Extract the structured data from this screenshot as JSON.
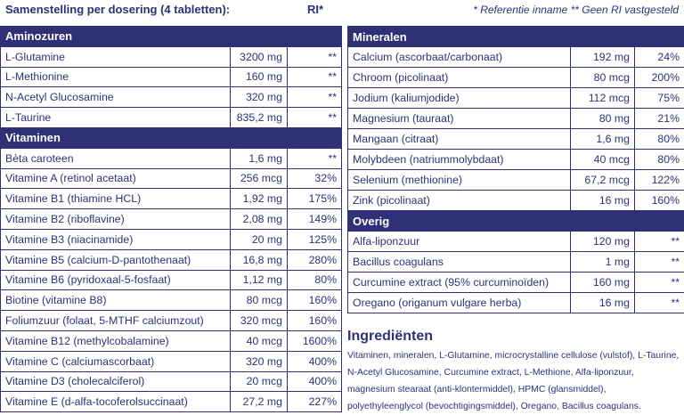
{
  "header": {
    "title": "Samenstelling per dosering (4 tabletten):",
    "ri": "RI*",
    "legend": "* Referentie inname ** Geen RI vastgesteld"
  },
  "left": {
    "sections": [
      {
        "title": "Aminozuren",
        "rows": [
          [
            "L-Glutamine",
            "3200 mg",
            "**"
          ],
          [
            "L-Methionine",
            "160 mg",
            "**"
          ],
          [
            "N-Acetyl Glucosamine",
            "320 mg",
            "**"
          ],
          [
            "L-Taurine",
            "835,2 mg",
            "**"
          ]
        ]
      },
      {
        "title": "Vitaminen",
        "rows": [
          [
            "Bèta caroteen",
            "1,6 mg",
            "**"
          ],
          [
            "Vitamine A (retinol acetaat)",
            "256 mcg",
            "32%"
          ],
          [
            "Vitamine B1 (thiamine HCL)",
            "1,92 mg",
            "175%"
          ],
          [
            "Vitamine B2 (riboflavine)",
            "2,08 mg",
            "149%"
          ],
          [
            "Vitamine B3 (niacinamide)",
            "20 mg",
            "125%"
          ],
          [
            "Vitamine B5 (calcium-D-pantothenaat)",
            "16,8 mg",
            "280%"
          ],
          [
            "Vitamine B6 (pyridoxaal-5-fosfaat)",
            "1,12 mg",
            "80%"
          ],
          [
            "Biotine (vitamine B8)",
            "80 mcg",
            "160%"
          ],
          [
            "Foliumzuur (folaat, 5-MTHF calciumzout)",
            "320 mcg",
            "160%"
          ],
          [
            "Vitamine B12 (methylcobalamine)",
            "40 mcg",
            "1600%"
          ],
          [
            "Vitamine C (calciumascorbaat)",
            "320 mg",
            "400%"
          ],
          [
            "Vitamine D3 (cholecalciferol)",
            "20 mcg",
            "400%"
          ],
          [
            "Vitamine E (d-alfa-tocoferolsuccinaat)",
            "27,2 mg",
            "227%"
          ]
        ]
      }
    ]
  },
  "right": {
    "sections": [
      {
        "title": "Mineralen",
        "rows": [
          [
            "Calcium (ascorbaat/carbonaat)",
            "192 mg",
            "24%"
          ],
          [
            "Chroom (picolinaat)",
            "80 mcg",
            "200%"
          ],
          [
            "Jodium (kaliumjodide)",
            "112 mcg",
            "75%"
          ],
          [
            "Magnesium (tauraat)",
            "80 mg",
            "21%"
          ],
          [
            "Mangaan (citraat)",
            "1,6 mg",
            "80%"
          ],
          [
            "Molybdeen (natriummolybdaat)",
            "40 mcg",
            "80%"
          ],
          [
            "Selenium (methionine)",
            "67,2 mcg",
            "122%"
          ],
          [
            "Zink (picolinaat)",
            "16 mg",
            "160%"
          ]
        ]
      },
      {
        "title": "Overig",
        "rows": [
          [
            "Alfa-liponzuur",
            "120 mg",
            "**"
          ],
          [
            "Bacillus coagulans",
            "1 mg",
            "**"
          ],
          [
            "Curcumine extract (95% curcuminoïden)",
            "160 mg",
            "**"
          ],
          [
            "Oregano (origanum vulgare herba)",
            "16 mg",
            "**"
          ]
        ]
      }
    ]
  },
  "ingredients": {
    "title": "Ingrediënten",
    "text": "Vitaminen, mineralen, L-Glutamine, microcrystalline cellulose (vulstof), L-Taurine, N-Acetyl Glucosamine, Curcumine extract, L-Methione, Alfa-liponzuur, magnesium stearaat (anti-klontermiddel), HPMC (glansmiddel), polyethyleenglycol (bevochtigingsmiddel), Oregano, Bacillus coagulans."
  }
}
